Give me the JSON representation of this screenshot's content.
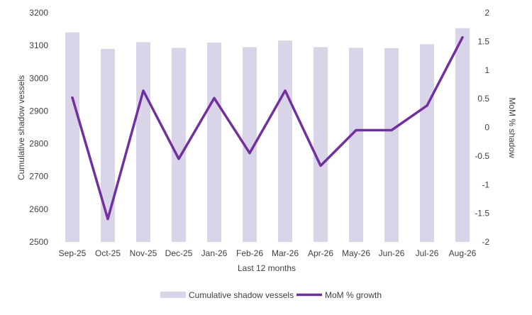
{
  "chart_data": {
    "type": "bar+line",
    "xlabel": "Last 12 months",
    "ylabel": "Cumulative shadow vessels",
    "y2label": "MoM % shadow",
    "categories": [
      "Sep-25",
      "Oct-25",
      "Nov-25",
      "Dec-25",
      "Jan-26",
      "Feb-26",
      "Mar-26",
      "Apr-26",
      "May-26",
      "Jun-26",
      "Jul-26",
      "Aug-26"
    ],
    "ylim": [
      2500,
      3200
    ],
    "yticks": [
      2500,
      2600,
      2700,
      2800,
      2900,
      3000,
      3100,
      3200
    ],
    "y2lim": [
      -2,
      2
    ],
    "y2ticks": [
      -2,
      -1.5,
      -1,
      -0.5,
      0,
      0.5,
      1,
      1.5,
      2
    ],
    "series": [
      {
        "name": "Cumulative shadow vessels",
        "type": "bar",
        "axis": "left",
        "color": "#d9d4e8",
        "values": [
          3140,
          3090,
          3110,
          3093,
          3109,
          3095,
          3115,
          3095,
          3093,
          3092,
          3104,
          3153
        ]
      },
      {
        "name": "MoM % growth",
        "type": "line",
        "axis": "right",
        "color": "#7030a0",
        "values": [
          0.52,
          -1.6,
          0.64,
          -0.55,
          0.51,
          -0.45,
          0.64,
          -0.67,
          -0.05,
          -0.05,
          0.38,
          1.57
        ]
      }
    ],
    "legend_position": "bottom",
    "grid": false
  }
}
